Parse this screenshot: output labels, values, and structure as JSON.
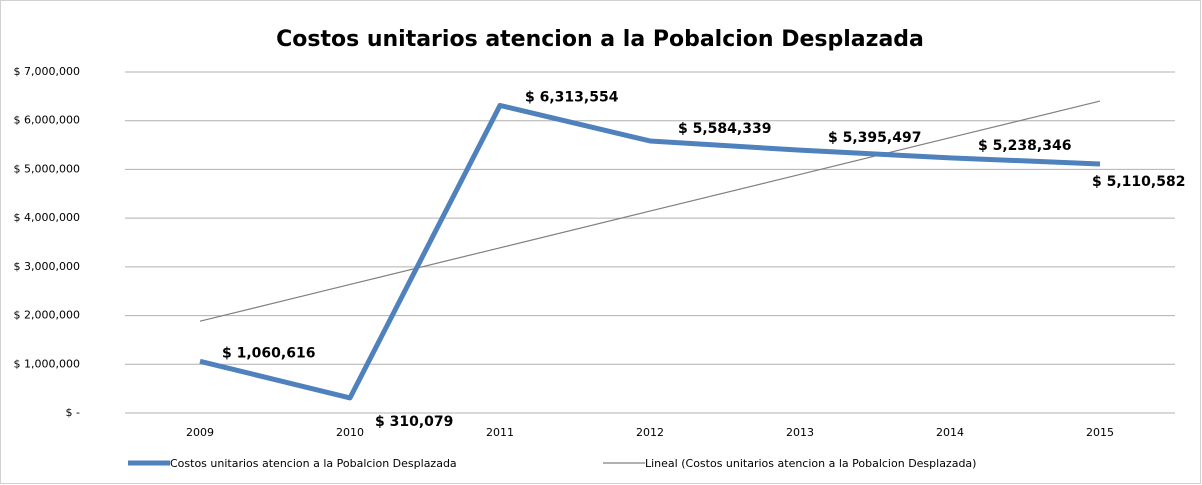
{
  "chart_data": {
    "type": "line",
    "title": "Costos unitarios atencion a la Pobalcion Desplazada",
    "categories": [
      "2009",
      "2010",
      "2011",
      "2012",
      "2013",
      "2014",
      "2015"
    ],
    "series": [
      {
        "name": "Costos unitarios atencion a la Pobalcion Desplazada",
        "color": "#4f81bd",
        "values": [
          1060616,
          310079,
          6313554,
          5584339,
          5395497,
          5238346,
          5110582
        ],
        "value_labels": [
          "$ 1,060,616",
          "$ 310,079",
          "$ 6,313,554",
          "$ 5,584,339",
          "$ 5,395,497",
          "$ 5,238,346",
          "$ 5,110,582"
        ]
      },
      {
        "name": "Lineal (Costos unitarios atencion a la Pobalcion Desplazada)",
        "color": "#808080",
        "values": [
          1885248,
          2638404,
          3391560,
          4144716,
          4897872,
          5651028,
          6404184
        ]
      }
    ],
    "ylim": [
      0,
      7000000
    ],
    "yticks": [
      {
        "value": 0,
        "label": "$ -"
      },
      {
        "value": 1000000,
        "label": "$ 1,000,000"
      },
      {
        "value": 2000000,
        "label": "$ 2,000,000"
      },
      {
        "value": 3000000,
        "label": "$ 3,000,000"
      },
      {
        "value": 4000000,
        "label": "$ 4,000,000"
      },
      {
        "value": 5000000,
        "label": "$ 5,000,000"
      },
      {
        "value": 6000000,
        "label": "$ 6,000,000"
      },
      {
        "value": 7000000,
        "label": "$ 7,000,000"
      }
    ],
    "grid": true,
    "legend": "bottom"
  }
}
